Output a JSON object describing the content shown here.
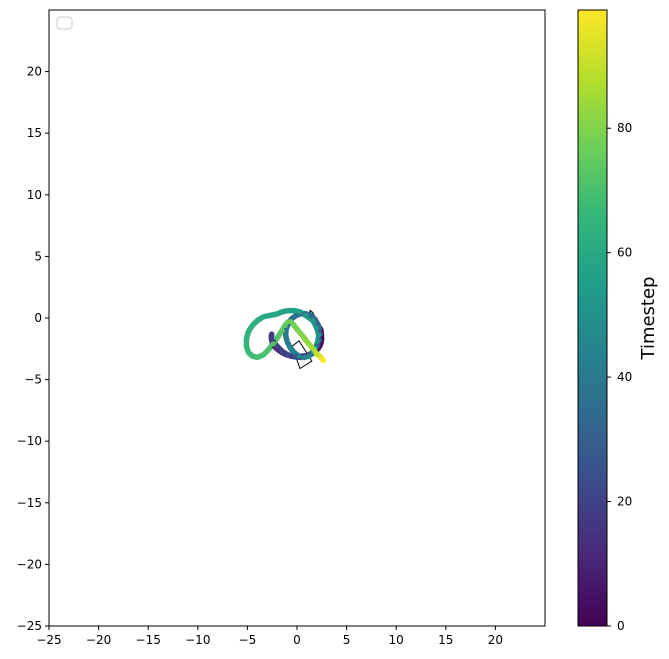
{
  "chart_data": {
    "type": "scatter",
    "title": "",
    "xlabel": "",
    "ylabel": "",
    "xlim": [
      -25,
      25
    ],
    "ylim": [
      -25,
      25
    ],
    "xticks": [
      -25,
      -20,
      -15,
      -10,
      -5,
      0,
      5,
      10,
      15,
      20
    ],
    "yticks": [
      -25,
      -20,
      -15,
      -10,
      -5,
      0,
      5,
      10,
      15,
      20
    ],
    "grid": false,
    "legend": "top-left (empty)",
    "colormap": "viridis",
    "colorbar": {
      "label": "Timestep",
      "range": [
        0,
        99
      ],
      "ticks": [
        0,
        20,
        40,
        60,
        80
      ]
    },
    "trajectory": {
      "t": [
        0,
        1,
        2,
        3,
        4,
        5,
        6,
        7,
        8,
        9,
        10,
        11,
        12,
        13,
        14,
        15,
        16,
        17,
        18,
        19,
        20,
        21,
        22,
        23,
        24,
        25,
        26,
        27,
        28,
        29,
        30,
        31,
        32,
        33,
        34,
        35,
        36,
        37,
        38,
        39,
        40,
        41,
        42,
        43,
        44,
        45,
        46,
        47,
        48,
        49,
        50,
        51,
        52,
        53,
        54,
        55,
        56,
        57,
        58,
        59,
        60,
        61,
        62,
        63,
        64,
        65,
        66,
        67,
        68,
        69,
        70,
        71,
        72,
        73,
        74,
        75,
        76,
        77,
        78,
        79,
        80,
        81,
        82,
        83,
        84,
        85,
        86,
        87,
        88,
        89,
        90,
        91,
        92,
        93,
        94,
        95,
        96,
        97,
        98,
        99
      ],
      "x": [
        2.4,
        2.45,
        2.48,
        2.4,
        2.2,
        1.9,
        1.5,
        1.0,
        0.5,
        0.0,
        -0.5,
        -1.0,
        -1.5,
        -1.9,
        -2.3,
        -2.5,
        -2.6,
        -2.55,
        -2.6,
        -2.4,
        -2.0,
        -1.5,
        -0.9,
        -0.3,
        0.3,
        0.9,
        1.4,
        1.8,
        2.1,
        2.3,
        2.35,
        2.3,
        2.1,
        1.8,
        1.4,
        0.9,
        0.4,
        -0.1,
        -0.6,
        -0.9,
        -1.1,
        -1.15,
        -1.0,
        -0.7,
        -0.3,
        0.2,
        0.7,
        1.2,
        1.6,
        1.9,
        2.1,
        2.2,
        2.0,
        1.6,
        0.9,
        0.3,
        -0.3,
        -0.9,
        -1.5,
        -2.1,
        -2.8,
        -3.4,
        -4.0,
        -4.5,
        -4.9,
        -5.1,
        -5.1,
        -4.9,
        -4.5,
        -4.0,
        -3.4,
        -2.9,
        -2.4,
        -1.9,
        -1.5,
        -1.2,
        -0.9,
        -0.6,
        -0.3,
        0.0,
        0.3,
        0.6,
        0.9,
        1.1,
        1.3,
        1.5,
        1.7,
        1.8,
        1.9,
        2.0,
        2.1,
        2.2,
        2.3,
        2.35,
        2.4,
        2.45,
        2.5,
        2.55,
        2.6,
        2.65
      ],
      "y": [
        -0.9,
        -1.3,
        -1.7,
        -2.1,
        -2.4,
        -2.7,
        -2.9,
        -3.05,
        -3.1,
        -3.1,
        -3.1,
        -3.0,
        -2.8,
        -2.6,
        -2.3,
        -2.0,
        -1.6,
        -1.3,
        -1.5,
        -1.9,
        -2.3,
        -2.7,
        -3.0,
        -3.15,
        -3.2,
        -3.1,
        -2.9,
        -2.6,
        -2.2,
        -1.8,
        -1.3,
        -0.9,
        -0.5,
        -0.1,
        0.2,
        0.35,
        0.35,
        0.2,
        -0.1,
        -0.5,
        -0.9,
        -1.4,
        -1.9,
        -2.4,
        -2.8,
        -3.1,
        -3.2,
        -3.1,
        -2.8,
        -2.4,
        -1.9,
        -1.4,
        -0.8,
        -0.2,
        0.2,
        0.5,
        0.6,
        0.6,
        0.5,
        0.3,
        0.2,
        0.1,
        -0.2,
        -0.6,
        -1.1,
        -1.7,
        -2.3,
        -2.8,
        -3.1,
        -3.2,
        -3.0,
        -2.6,
        -2.1,
        -1.5,
        -1.0,
        -0.6,
        -0.3,
        -0.3,
        -0.6,
        -0.9,
        -1.2,
        -1.5,
        -1.8,
        -2.0,
        -2.2,
        -2.4,
        -2.55,
        -2.7,
        -2.8,
        -2.9,
        -3.0,
        -3.05,
        -3.1,
        -3.15,
        -3.2,
        -3.25,
        -3.3,
        -3.35,
        -3.4,
        -3.45
      ]
    },
    "outlines": [
      {
        "name": "",
        "points": [
          [
            1.3,
            0.6
          ],
          [
            1.6,
            0.45
          ],
          [
            2.7,
            -1.7
          ],
          [
            2.3,
            -1.9
          ]
        ]
      },
      {
        "name": "",
        "points": [
          [
            -0.5,
            -2.3
          ],
          [
            0.2,
            -1.85
          ],
          [
            1.5,
            -3.5
          ],
          [
            0.3,
            -4.1
          ]
        ]
      }
    ]
  }
}
